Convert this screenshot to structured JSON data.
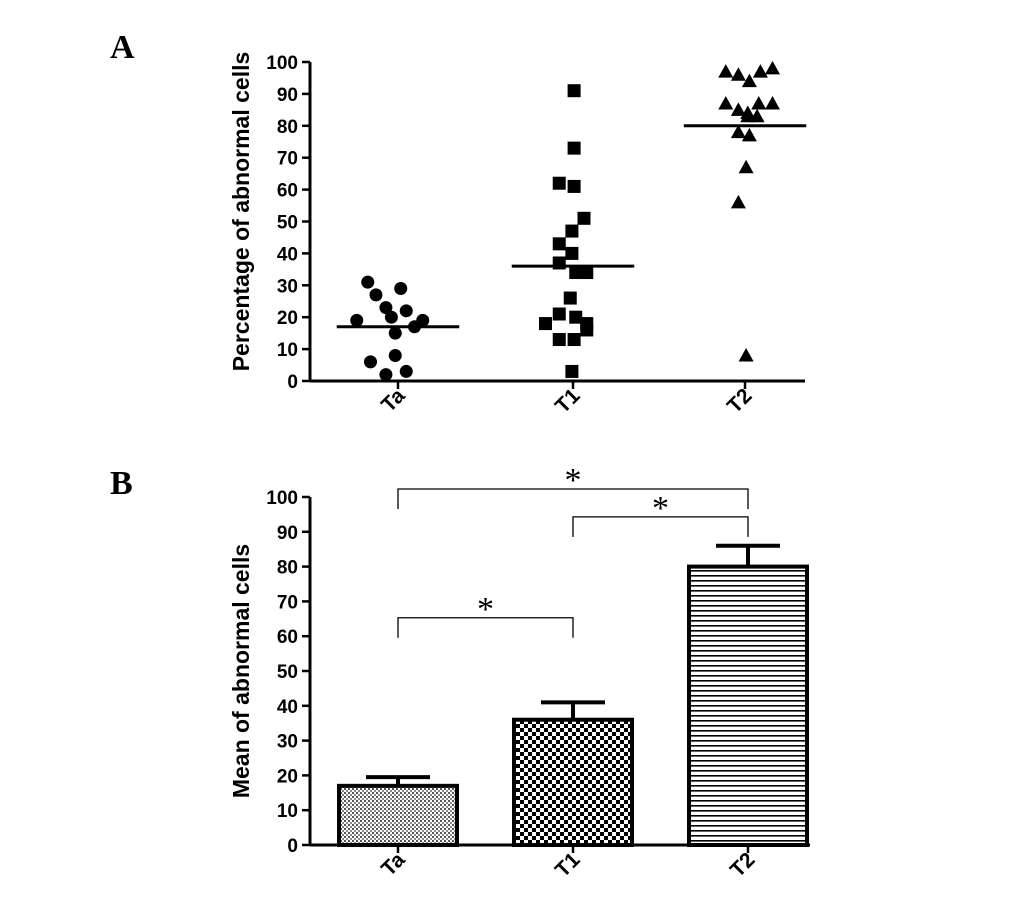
{
  "figure": {
    "panel_a_label": "A",
    "panel_b_label": "B"
  },
  "chart_data": [
    {
      "type": "scatter",
      "panel": "A",
      "ylabel": "Percentage of abnormal cells",
      "ylim": [
        0,
        100
      ],
      "yticks": [
        0,
        10,
        20,
        30,
        40,
        50,
        60,
        70,
        80,
        90,
        100
      ],
      "categories": [
        "Ta",
        "T1",
        "T2"
      ],
      "groups": [
        {
          "category": "Ta",
          "marker": "circle",
          "median": 17,
          "points": [
            {
              "offset": -0.55,
              "y": 31
            },
            {
              "offset": -0.4,
              "y": 27
            },
            {
              "offset": 0.05,
              "y": 29
            },
            {
              "offset": -0.22,
              "y": 23
            },
            {
              "offset": 0.15,
              "y": 22
            },
            {
              "offset": -0.12,
              "y": 20
            },
            {
              "offset": -0.75,
              "y": 19
            },
            {
              "offset": 0.45,
              "y": 19
            },
            {
              "offset": -0.05,
              "y": 15
            },
            {
              "offset": 0.3,
              "y": 17
            },
            {
              "offset": -0.05,
              "y": 8
            },
            {
              "offset": -0.5,
              "y": 6
            },
            {
              "offset": -0.22,
              "y": 2
            },
            {
              "offset": 0.15,
              "y": 3
            }
          ]
        },
        {
          "category": "T1",
          "marker": "square",
          "median": 36,
          "points": [
            {
              "offset": 0.02,
              "y": 91
            },
            {
              "offset": 0.02,
              "y": 73
            },
            {
              "offset": -0.25,
              "y": 62
            },
            {
              "offset": 0.02,
              "y": 61
            },
            {
              "offset": 0.2,
              "y": 51
            },
            {
              "offset": -0.02,
              "y": 47
            },
            {
              "offset": -0.25,
              "y": 43
            },
            {
              "offset": -0.02,
              "y": 40
            },
            {
              "offset": -0.25,
              "y": 37
            },
            {
              "offset": 0.05,
              "y": 34
            },
            {
              "offset": 0.25,
              "y": 34
            },
            {
              "offset": -0.05,
              "y": 26
            },
            {
              "offset": -0.25,
              "y": 21
            },
            {
              "offset": 0.05,
              "y": 20
            },
            {
              "offset": -0.5,
              "y": 18
            },
            {
              "offset": 0.25,
              "y": 18
            },
            {
              "offset": 0.25,
              "y": 16
            },
            {
              "offset": -0.25,
              "y": 13
            },
            {
              "offset": 0.02,
              "y": 13
            },
            {
              "offset": -0.02,
              "y": 3
            }
          ]
        },
        {
          "category": "T2",
          "marker": "triangle",
          "median": 80,
          "points": [
            {
              "offset": -0.35,
              "y": 97
            },
            {
              "offset": -0.12,
              "y": 96
            },
            {
              "offset": 0.08,
              "y": 94
            },
            {
              "offset": 0.28,
              "y": 97
            },
            {
              "offset": 0.5,
              "y": 98
            },
            {
              "offset": -0.35,
              "y": 87
            },
            {
              "offset": -0.12,
              "y": 85
            },
            {
              "offset": 0.05,
              "y": 84
            },
            {
              "offset": 0.25,
              "y": 87
            },
            {
              "offset": 0.5,
              "y": 87
            },
            {
              "offset": 0.05,
              "y": 83
            },
            {
              "offset": 0.22,
              "y": 83
            },
            {
              "offset": -0.12,
              "y": 78
            },
            {
              "offset": 0.08,
              "y": 77
            },
            {
              "offset": 0.02,
              "y": 67
            },
            {
              "offset": -0.12,
              "y": 56
            },
            {
              "offset": 0.02,
              "y": 8
            }
          ]
        }
      ]
    },
    {
      "type": "bar",
      "panel": "B",
      "ylabel": "Mean of abnormal cells",
      "ylim": [
        0,
        100
      ],
      "yticks": [
        0,
        10,
        20,
        30,
        40,
        50,
        60,
        70,
        80,
        90,
        100
      ],
      "categories": [
        "Ta",
        "T1",
        "T2"
      ],
      "values": [
        17,
        36,
        80
      ],
      "error_upper": [
        19.5,
        41,
        86
      ],
      "patterns": [
        "dots",
        "checker",
        "hlines"
      ],
      "significance": [
        {
          "from": "Ta",
          "to": "T1",
          "y": 63,
          "label": "*"
        },
        {
          "from": "T1",
          "to": "T2",
          "y": 92,
          "label": "*"
        },
        {
          "from": "Ta",
          "to": "T2",
          "y": 100,
          "label": "*"
        }
      ]
    }
  ]
}
